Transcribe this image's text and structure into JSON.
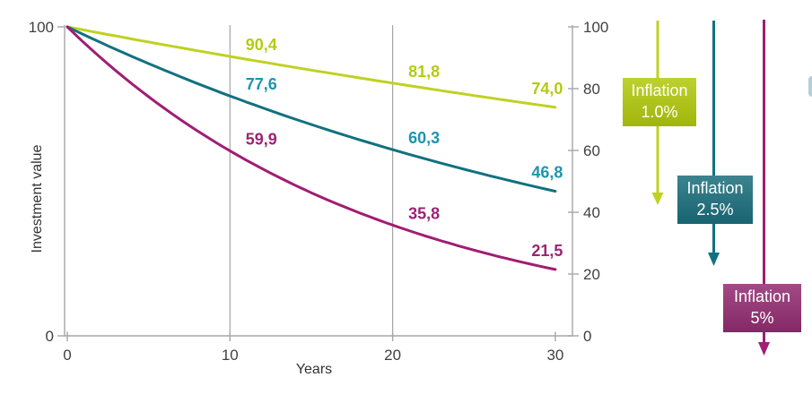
{
  "chart_data": {
    "type": "line",
    "title": "",
    "xlabel": "Years",
    "ylabel": "Investment value",
    "xlim": [
      0,
      30
    ],
    "ylim": [
      0,
      100
    ],
    "x_ticks": [
      0,
      10,
      20,
      30
    ],
    "y_ticks_left": [
      100,
      0
    ],
    "y_ticks_right": [
      100,
      80,
      60,
      40,
      20,
      0
    ],
    "x_gridlines": [
      10,
      20
    ],
    "grid_on": true,
    "legend_position": "right-annotation-boxes",
    "grid_color": "#a6a6a6",
    "axis_color": "#a6a6a6",
    "tick_label_color": "#404040",
    "axis_title_color": "#333333",
    "decimal_separator": ",",
    "series": [
      {
        "name": "Inflation 1.0%",
        "inflation_rate_pct": 1.0,
        "line_color": "#bfd122",
        "label_color": "#b4cb13",
        "x": [
          0,
          10,
          20,
          30
        ],
        "values": [
          100,
          90.4,
          81.8,
          74.0
        ],
        "data_labels": [
          {
            "x": 10,
            "text": "90,4"
          },
          {
            "x": 20,
            "text": "81,8"
          },
          {
            "x": 30,
            "text": "74,0"
          }
        ]
      },
      {
        "name": "Inflation 2.5%",
        "inflation_rate_pct": 2.5,
        "line_color": "#117180",
        "label_color": "#1d95ad",
        "x": [
          0,
          10,
          20,
          30
        ],
        "values": [
          100,
          77.6,
          60.3,
          46.8
        ],
        "data_labels": [
          {
            "x": 10,
            "text": "77,6"
          },
          {
            "x": 20,
            "text": "60,3"
          },
          {
            "x": 30,
            "text": "46,8"
          }
        ]
      },
      {
        "name": "Inflation 5%",
        "inflation_rate_pct": 5.0,
        "line_color": "#a01d74",
        "label_color": "#9c2472",
        "x": [
          0,
          10,
          20,
          30
        ],
        "values": [
          100,
          59.9,
          35.8,
          21.5
        ],
        "data_labels": [
          {
            "x": 10,
            "text": "59,9"
          },
          {
            "x": 20,
            "text": "35,8"
          },
          {
            "x": 30,
            "text": "21,5"
          }
        ]
      }
    ]
  },
  "annotations": {
    "items": [
      {
        "title": "Inflation",
        "value": "1.0%",
        "box_color": "#b3ca0d",
        "arrow_color": "#bfd122",
        "text_color": "#ffffff"
      },
      {
        "title": "Inflation",
        "value": "2.5%",
        "box_color": "#1b6f7d",
        "arrow_color": "#117180",
        "text_color": "#ffffff"
      },
      {
        "title": "Inflation",
        "value": "5%",
        "box_color": "#932d72",
        "arrow_color": "#a01d74",
        "text_color": "#ffffff"
      }
    ]
  }
}
